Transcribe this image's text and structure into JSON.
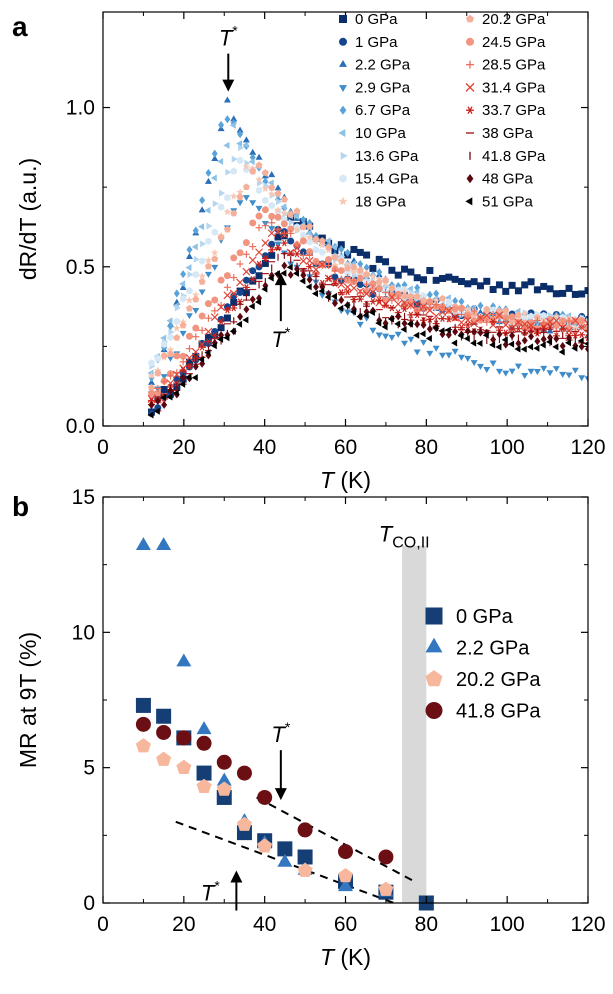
{
  "chart_data": [
    {
      "panel": "a",
      "type": "scatter",
      "title": "",
      "xlabel_italic": "T",
      "xlabel_unit": " (K)",
      "ylabel": "dR/dT (a.u.)",
      "xlim": [
        0,
        120
      ],
      "ylim": [
        0,
        1.3
      ],
      "xticks": [
        0,
        20,
        40,
        60,
        80,
        100,
        120
      ],
      "yticks": [
        0.0,
        0.5,
        1.0
      ],
      "ytick_labels": [
        "0.0",
        "0.5",
        "1.0"
      ],
      "legend_position": "top-right",
      "annotations": [
        {
          "text": "T",
          "sup": "*",
          "x": 31,
          "y": 1.05,
          "direction": "down"
        },
        {
          "text": "T",
          "sup": "*",
          "x": 44,
          "y": 0.48,
          "direction": "up"
        }
      ],
      "series": [
        {
          "name": "0 GPa",
          "marker": "square",
          "color": "#0b2e6b",
          "peak_x": 47,
          "peak_y": 0.65,
          "end_y": 0.42,
          "min_y": 0.06
        },
        {
          "name": "1 GPa",
          "marker": "circle",
          "color": "#14468f",
          "peak_x": 44,
          "peak_y": 0.62,
          "end_y": 0.32,
          "min_y": 0.05
        },
        {
          "name": "2.2 GPa",
          "marker": "triangle-up",
          "color": "#2a6eb5",
          "peak_x": 31,
          "peak_y": 1.02,
          "end_y": 0.27,
          "min_y": 0.12
        },
        {
          "name": "2.9 GPa",
          "marker": "triangle-down",
          "color": "#3f8ccb",
          "peak_x": 35,
          "peak_y": 0.75,
          "end_y": 0.14,
          "min_y": 0.1
        },
        {
          "name": "6.7 GPa",
          "marker": "diamond",
          "color": "#5aa3d8",
          "peak_x": 30,
          "peak_y": 1.0,
          "end_y": 0.3,
          "min_y": 0.15
        },
        {
          "name": "10 GPa",
          "marker": "triangle-left",
          "color": "#8dc1e6",
          "peak_x": 32,
          "peak_y": 0.95,
          "end_y": 0.3,
          "min_y": 0.18
        },
        {
          "name": "13.6 GPa",
          "marker": "triangle-right",
          "color": "#b6d6ef",
          "peak_x": 33,
          "peak_y": 0.88,
          "end_y": 0.3,
          "min_y": 0.18
        },
        {
          "name": "15.4 GPa",
          "marker": "hexagon",
          "color": "#d6e7f6",
          "peak_x": 34,
          "peak_y": 0.84,
          "end_y": 0.3,
          "min_y": 0.18
        },
        {
          "name": "18 GPa",
          "marker": "star",
          "color": "#f7c8b4",
          "peak_x": 36,
          "peak_y": 0.82,
          "end_y": 0.3,
          "min_y": 0.15
        },
        {
          "name": "20.2 GPa",
          "marker": "pentagon",
          "color": "#f6b09a",
          "peak_x": 38,
          "peak_y": 0.84,
          "end_y": 0.3,
          "min_y": 0.14
        },
        {
          "name": "24.5 GPa",
          "marker": "circle",
          "color": "#f19580",
          "peak_x": 40,
          "peak_y": 0.7,
          "end_y": 0.3,
          "min_y": 0.1
        },
        {
          "name": "28.5 GPa",
          "marker": "plus",
          "color": "#ec6d5a",
          "peak_x": 41,
          "peak_y": 0.66,
          "end_y": 0.3,
          "min_y": 0.08
        },
        {
          "name": "31.4 GPa",
          "marker": "x",
          "color": "#e04436",
          "peak_x": 42,
          "peak_y": 0.62,
          "end_y": 0.3,
          "min_y": 0.07
        },
        {
          "name": "33.7 GPa",
          "marker": "asterisk",
          "color": "#c9221c",
          "peak_x": 43,
          "peak_y": 0.58,
          "end_y": 0.28,
          "min_y": 0.06
        },
        {
          "name": "38 GPa",
          "marker": "hline",
          "color": "#a61418",
          "peak_x": 44,
          "peak_y": 0.55,
          "end_y": 0.27,
          "min_y": 0.05
        },
        {
          "name": "41.8 GPa",
          "marker": "vline",
          "color": "#7d0b12",
          "peak_x": 44,
          "peak_y": 0.53,
          "end_y": 0.26,
          "min_y": 0.05
        },
        {
          "name": "48 GPa",
          "marker": "diamond",
          "color": "#5a0710",
          "peak_x": 45,
          "peak_y": 0.51,
          "end_y": 0.25,
          "min_y": 0.05
        },
        {
          "name": "51 GPa",
          "marker": "triangle-left",
          "color": "#000000",
          "peak_x": 45,
          "peak_y": 0.5,
          "end_y": 0.24,
          "min_y": 0.04
        }
      ]
    },
    {
      "panel": "b",
      "type": "scatter",
      "title": "",
      "xlabel_italic": "T",
      "xlabel_unit": " (K)",
      "ylabel": "MR at 9T (%)",
      "xlim": [
        0,
        120
      ],
      "ylim": [
        0,
        15
      ],
      "xticks": [
        0,
        20,
        40,
        60,
        80,
        100,
        120
      ],
      "yticks": [
        0,
        5,
        10,
        15
      ],
      "legend_position": "right",
      "shaded_band": {
        "x0": 74,
        "x1": 80,
        "label": "T",
        "label_sub": "CO,II"
      },
      "annotations": [
        {
          "text": "T",
          "sup": "*",
          "x": 44,
          "y": 3.8,
          "direction": "down"
        },
        {
          "text": "T",
          "sup": "*",
          "x": 33,
          "y": 1.2,
          "direction": "up"
        }
      ],
      "dashed_lines": [
        {
          "x": [
            18,
            72
          ],
          "y": [
            3.0,
            0.0
          ]
        },
        {
          "x": [
            38,
            77
          ],
          "y": [
            3.9,
            0.8
          ]
        }
      ],
      "series": [
        {
          "name": "0 GPa",
          "marker": "square",
          "color": "#143e74",
          "x": [
            10,
            15,
            20,
            25,
            30,
            35,
            40,
            45,
            50,
            60,
            70,
            80
          ],
          "y": [
            7.3,
            6.9,
            6.1,
            4.8,
            3.9,
            2.6,
            2.3,
            2.0,
            1.7,
            0.8,
            0.4,
            0.0
          ]
        },
        {
          "name": "2.2 GPa",
          "marker": "triangle-up",
          "color": "#3277bf",
          "x": [
            10,
            15,
            20,
            25,
            30,
            35,
            40,
            45,
            50,
            60,
            70
          ],
          "y": [
            13.2,
            13.2,
            8.9,
            6.4,
            4.5,
            3.0,
            2.2,
            1.5,
            1.2,
            0.6,
            0.4
          ]
        },
        {
          "name": "20.2 GPa",
          "marker": "pentagon",
          "color": "#f7b79c",
          "x": [
            10,
            15,
            20,
            25,
            30,
            35,
            40,
            50,
            60,
            70
          ],
          "y": [
            5.8,
            5.3,
            5.0,
            4.3,
            4.2,
            2.9,
            2.1,
            1.2,
            1.0,
            0.5
          ]
        },
        {
          "name": "41.8 GPa",
          "marker": "circle",
          "color": "#6b0f14",
          "x": [
            10,
            15,
            20,
            25,
            30,
            35,
            40,
            50,
            60,
            70
          ],
          "y": [
            6.6,
            6.3,
            6.1,
            5.9,
            5.2,
            4.8,
            3.9,
            2.7,
            1.9,
            1.7
          ]
        }
      ]
    }
  ]
}
